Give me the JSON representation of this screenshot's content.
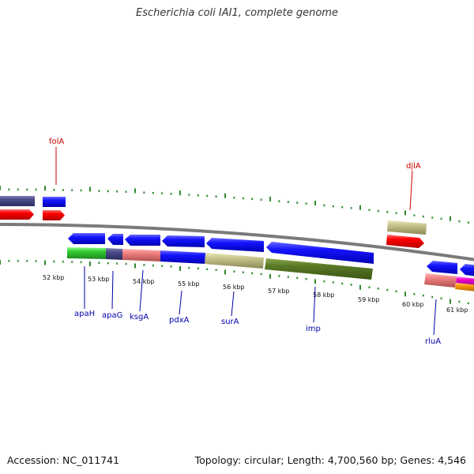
{
  "title": "Escherichia coli IAI1, complete genome",
  "footer": {
    "accession": "Accession: NC_011741",
    "topology": "Topology: circular; Length: 4,700,560 bp; Genes: 4,546"
  },
  "colors": {
    "rna_label": "#cc0000",
    "cds_label": "#0000aa",
    "tick": "#2f8a2f",
    "backbone": "#888888"
  },
  "top_labels": [
    "folA",
    "djlA"
  ],
  "kbp_labels": [
    "52 kbp",
    "53 kbp",
    "54 kbp",
    "55 kbp",
    "56 kbp",
    "57 kbp",
    "58 kbp",
    "59 kbp",
    "60 kbp",
    "61 kbp"
  ],
  "gene_labels": [
    "apaH",
    "apaG",
    "ksgA",
    "pdxA",
    "surA",
    "imp",
    "rluA"
  ]
}
